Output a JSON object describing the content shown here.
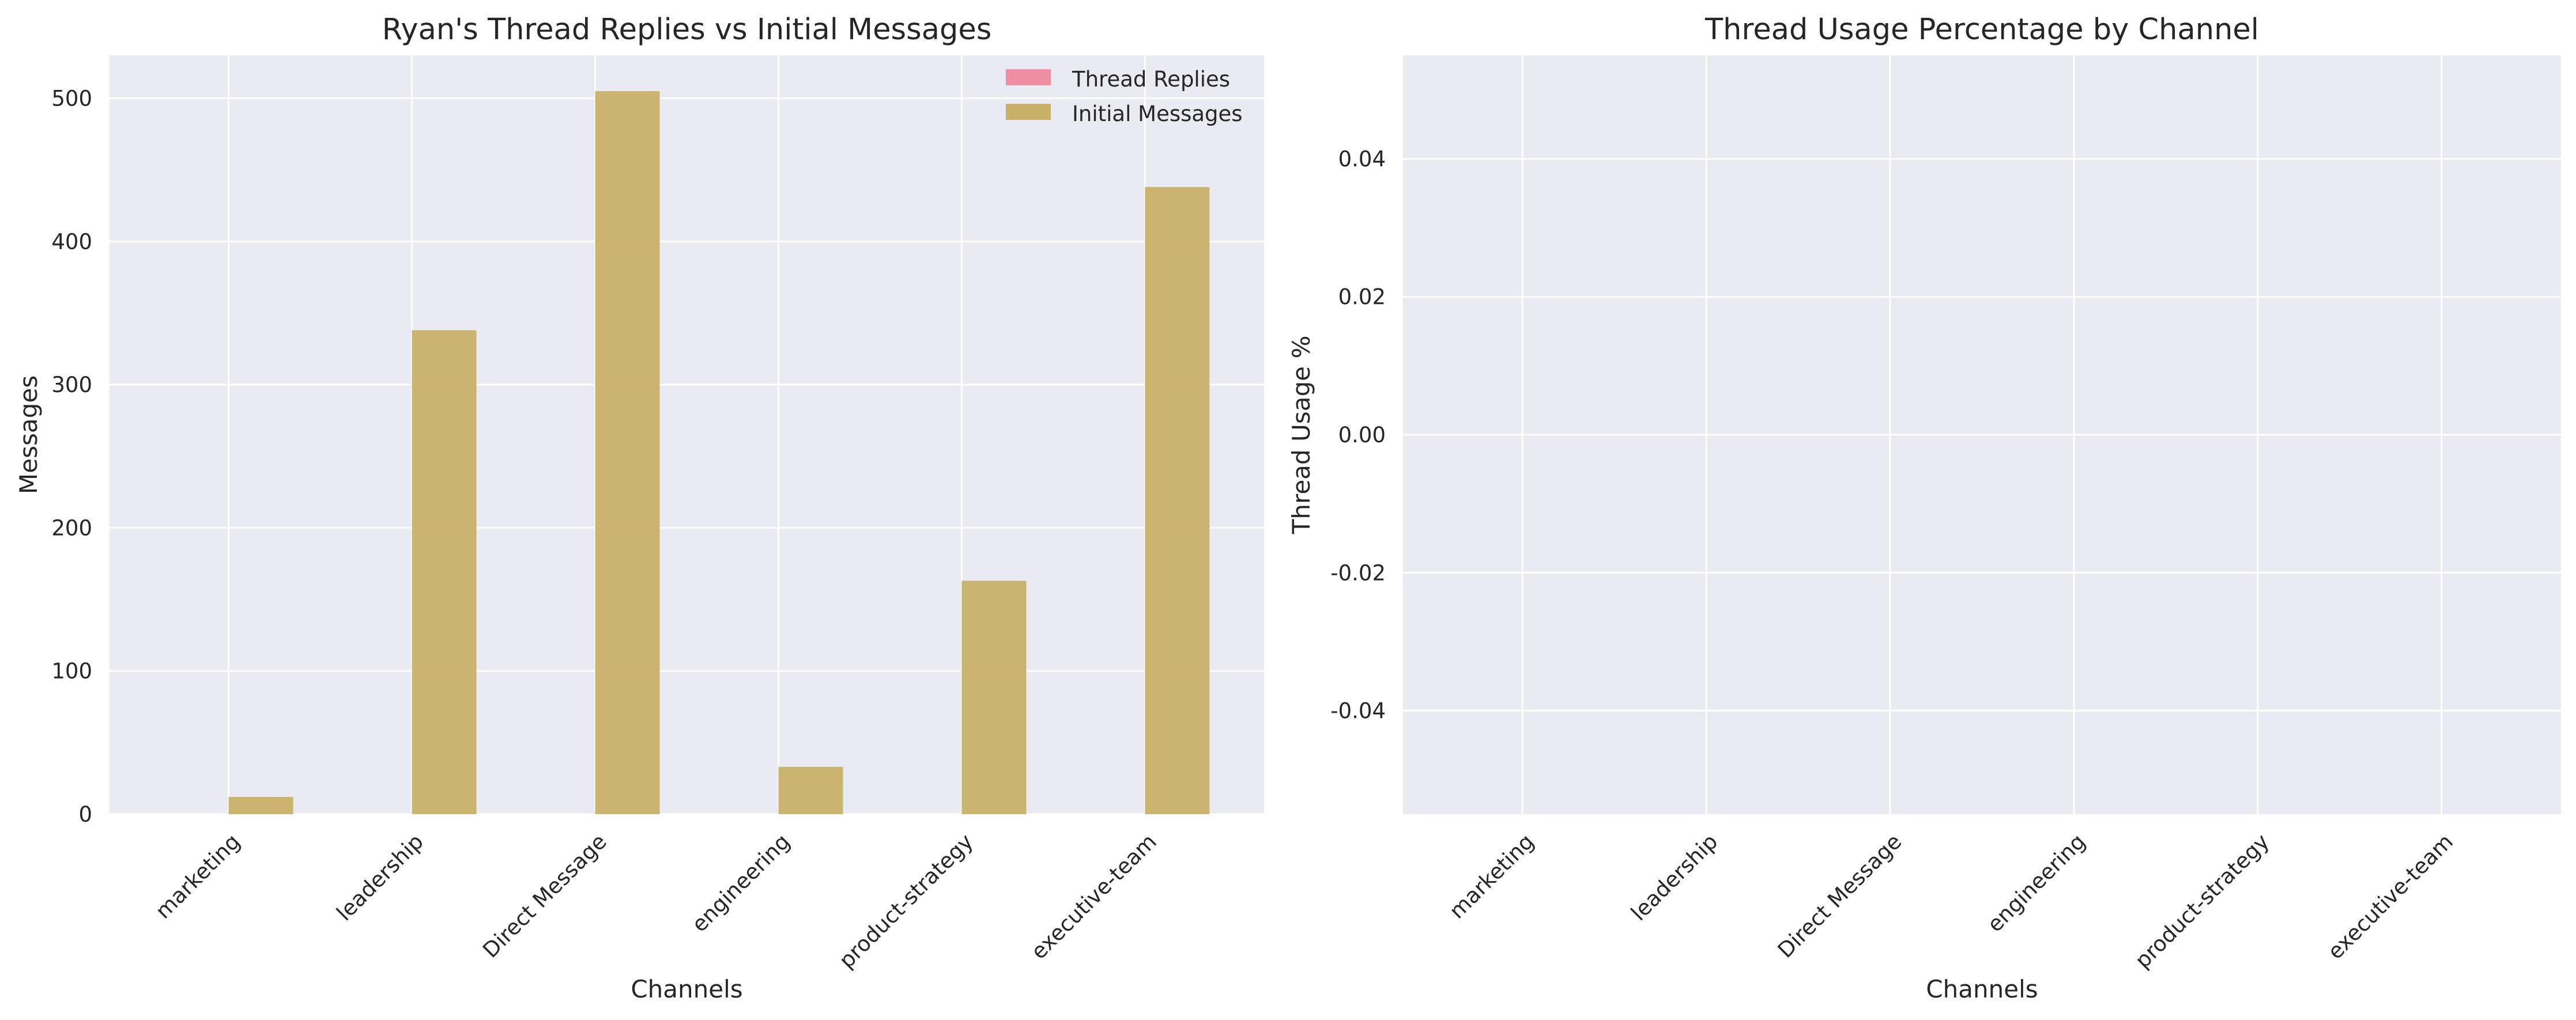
{
  "chart_data": [
    {
      "type": "bar",
      "title": "Ryan's Thread Replies vs Initial Messages",
      "xlabel": "Channels",
      "ylabel": "Messages",
      "categories": [
        "marketing",
        "leadership",
        "Direct Message",
        "engineering",
        "product-strategy",
        "executive-team"
      ],
      "series": [
        {
          "name": "Thread Replies",
          "values": [
            0,
            0,
            0,
            0,
            0,
            0
          ],
          "color": "#f08fa4"
        },
        {
          "name": "Initial Messages",
          "values": [
            12,
            338,
            505,
            33,
            163,
            438
          ],
          "color": "#c9b068"
        }
      ],
      "ylim": [
        0,
        530
      ],
      "yticks": [
        0,
        100,
        200,
        300,
        400,
        500
      ],
      "legend": "top-right",
      "grid": true
    },
    {
      "type": "bar",
      "title": "Thread Usage Percentage by Channel",
      "xlabel": "Channels",
      "ylabel": "Thread Usage %",
      "categories": [
        "marketing",
        "leadership",
        "Direct Message",
        "engineering",
        "product-strategy",
        "executive-team"
      ],
      "series": [
        {
          "values": [
            0,
            0,
            0,
            0,
            0,
            0
          ]
        }
      ],
      "ylim": [
        -0.055,
        0.055
      ],
      "yticks": [
        "-0.04",
        "-0.02",
        "0.00",
        "0.02",
        "0.04"
      ],
      "grid": true
    }
  ],
  "colors": {
    "plot_background": "#eaeaf2",
    "grid": "#ffffff"
  }
}
